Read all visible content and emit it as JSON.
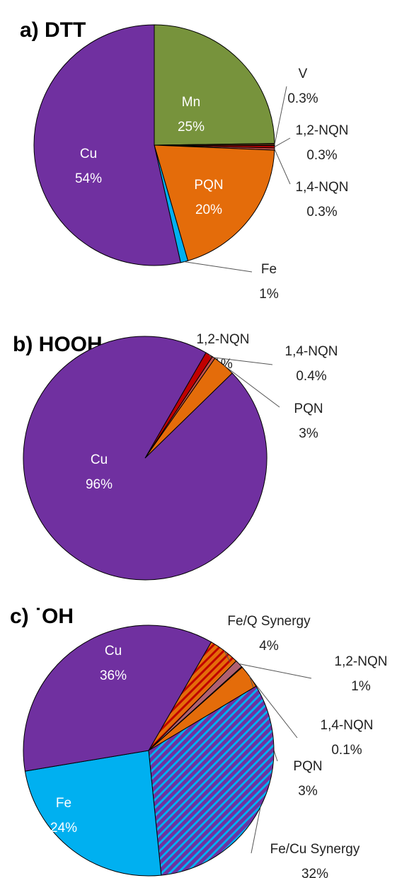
{
  "chart_data": [
    {
      "type": "pie",
      "title": "a) DTT",
      "categories": [
        "Mn",
        "V",
        "1,2-NQN",
        "1,4-NQN",
        "PQN",
        "Fe",
        "Cu"
      ],
      "values": [
        25,
        0.3,
        0.3,
        0.3,
        20,
        1,
        54
      ],
      "value_labels": [
        "25%",
        "0.3%",
        "0.3%",
        "0.3%",
        "20%",
        "1%",
        "54%"
      ],
      "colors": [
        "#77933c",
        "#4a2a10",
        "#c00000",
        "#c0504d",
        "#e46c0a",
        "#00b0f0",
        "#7030a0"
      ]
    },
    {
      "type": "pie",
      "title": "b) HOOH",
      "categories": [
        "1,2-NQN",
        "1,4-NQN",
        "PQN",
        "Cu"
      ],
      "values": [
        1,
        0.4,
        3,
        96
      ],
      "value_labels": [
        "1%",
        "0.4%",
        "3%",
        "96%"
      ],
      "colors": [
        "#c00000",
        "#c0504d",
        "#e46c0a",
        "#7030a0"
      ]
    },
    {
      "type": "pie",
      "title": "c) ˙OH",
      "categories": [
        "Fe/Q Synergy",
        "1,2-NQN",
        "1,4-NQN",
        "PQN",
        "Fe/Cu Synergy",
        "Fe",
        "Cu"
      ],
      "values": [
        4,
        1,
        0.1,
        3,
        32,
        24,
        36
      ],
      "value_labels": [
        "4%",
        "1%",
        "0.1%",
        "3%",
        "32%",
        "24%",
        "36%"
      ],
      "colors": [
        "#e46c0a",
        "#b06070",
        "#c090b0",
        "#e46c0a",
        "#7030a0",
        "#00b0f0",
        "#7030a0"
      ],
      "hatch_colors": [
        "#c00000",
        null,
        null,
        null,
        "#00b0f0",
        null,
        null
      ]
    }
  ]
}
